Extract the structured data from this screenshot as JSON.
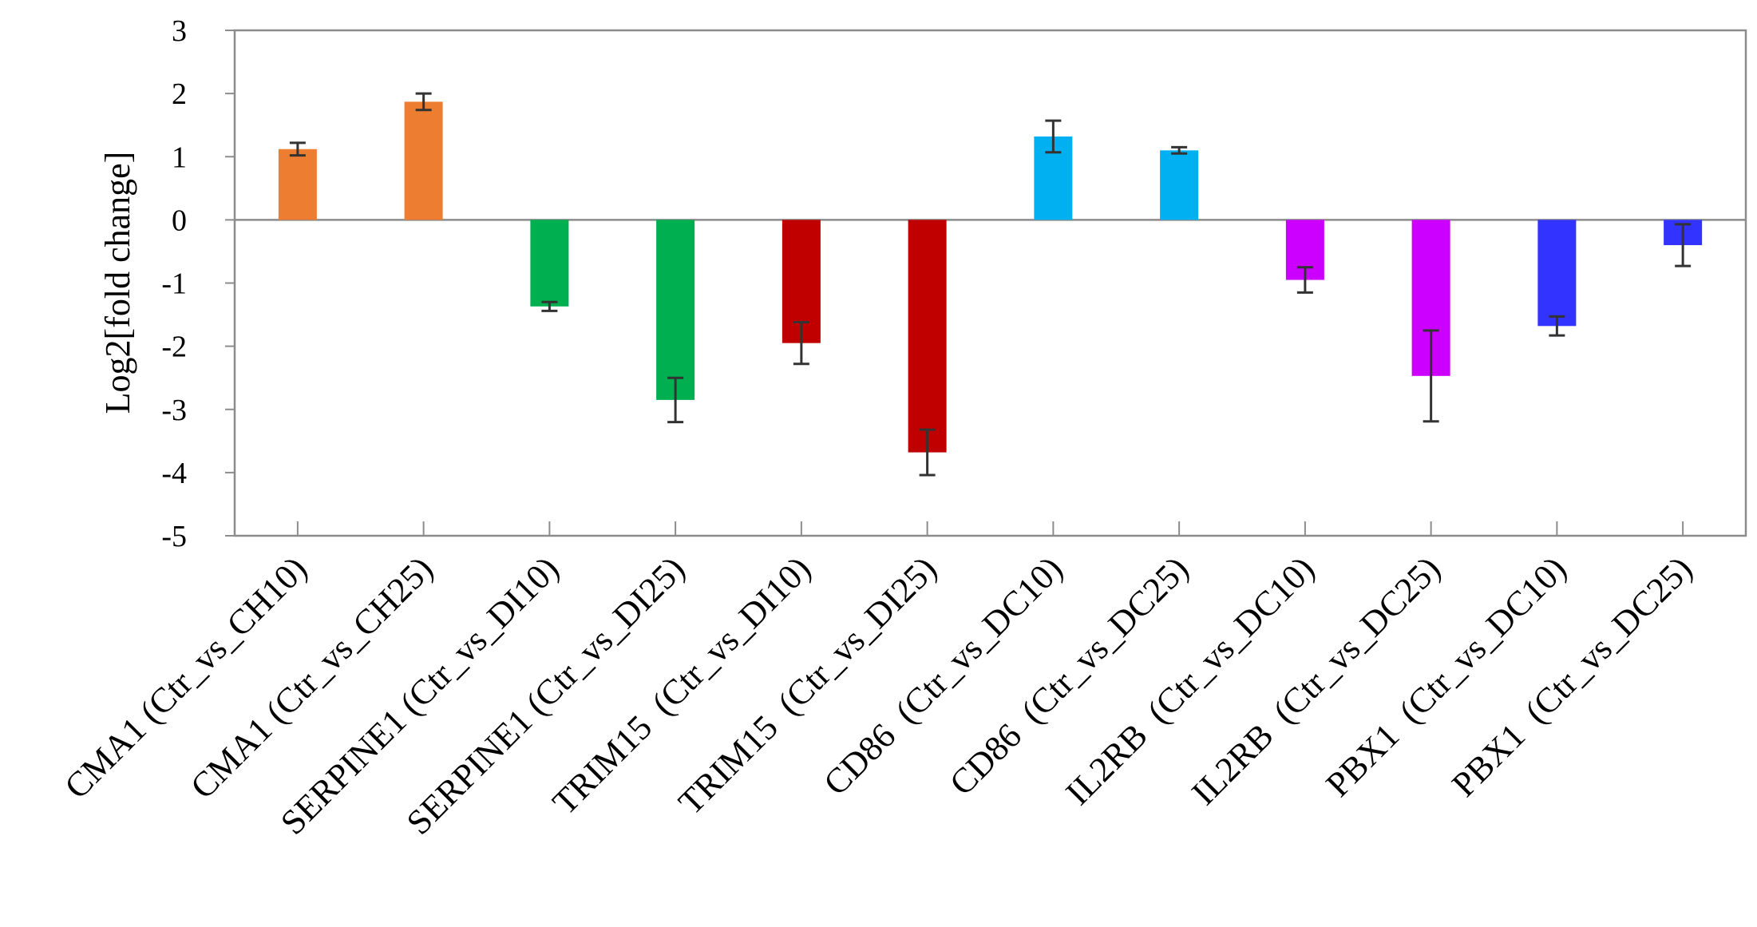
{
  "chart_data": {
    "type": "bar",
    "title": "",
    "xlabel": "",
    "ylabel": "Log2[fold change]",
    "ylim": [
      -5,
      3
    ],
    "yticks": [
      3,
      2,
      1,
      0,
      -1,
      -2,
      -3,
      -4,
      -5
    ],
    "grid": false,
    "legend": null,
    "categories": [
      "CMA1 (Ctr_vs_CH10)",
      "CMA1 (Ctr_vs_CH25)",
      "SERPINE1 (Ctr_vs_DI10)",
      "SERPINE1 (Ctr_vs_DI25)",
      "TRIM15  (Ctr_vs_DI10)",
      "TRIM15  (Ctr_vs_DI25)",
      "CD86  (Ctr_vs_DC10)",
      "CD86  (Ctr_vs_DC25)",
      "IL2RB  (Ctr_vs_DC10)",
      "IL2RB  (Ctr_vs_DC25)",
      "PBX1  (Ctr_vs_DC10)",
      "PBX1  (Ctr_vs_DC25)"
    ],
    "values": [
      1.12,
      1.87,
      -1.37,
      -2.85,
      -1.95,
      -3.68,
      1.32,
      1.1,
      -0.95,
      -2.47,
      -1.68,
      -0.4
    ],
    "errors": [
      0.1,
      0.13,
      0.07,
      0.35,
      0.33,
      0.36,
      0.25,
      0.05,
      0.2,
      0.72,
      0.15,
      0.33
    ],
    "colors": [
      "#ed7d31",
      "#ed7d31",
      "#00b050",
      "#00b050",
      "#c00000",
      "#c00000",
      "#00b0f0",
      "#00b0f0",
      "#cc00ff",
      "#cc00ff",
      "#3333ff",
      "#3333ff"
    ]
  }
}
